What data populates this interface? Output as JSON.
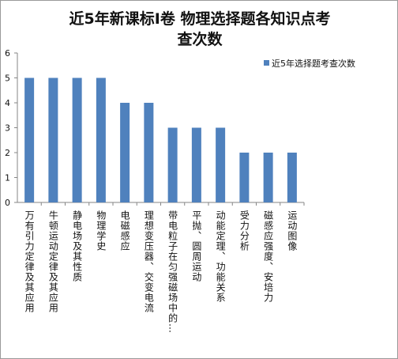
{
  "chart_data": {
    "type": "bar",
    "title_line1": "近5年新课标Ⅰ卷 物理选择题各知识点考",
    "title_line2": "查次数",
    "categories": [
      "万有引力定律及其应用",
      "牛顿运动定律及其应用",
      "静电场及其性质",
      "物理学史",
      "电磁感应",
      "理想变压器、交变电流",
      "带电粒子在匀强磁场中的…",
      "平抛、圆周运动",
      "动能定理、功能关系",
      "受力分析",
      "磁感应强度、安培力",
      "运动图像"
    ],
    "series": [
      {
        "name": "近5年选择题考查次数",
        "values": [
          5,
          5,
          5,
          5,
          4,
          4,
          3,
          3,
          3,
          2,
          2,
          2
        ]
      }
    ],
    "ylim": [
      0,
      6
    ],
    "yticks": [
      "0",
      "1",
      "2",
      "3",
      "4",
      "5",
      "6"
    ],
    "grid": false,
    "legend_position": "right",
    "colors": {
      "bar": "#4F81BD",
      "axis": "#868686",
      "text": "#111111"
    }
  }
}
